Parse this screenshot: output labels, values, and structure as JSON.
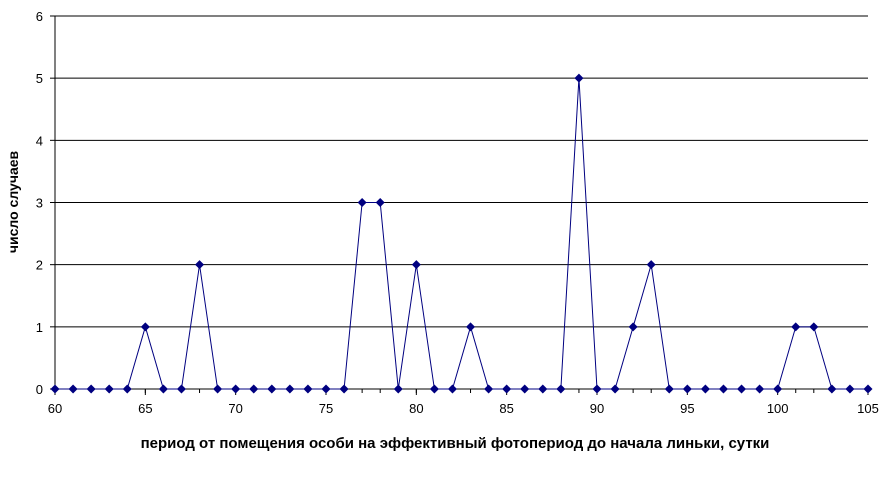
{
  "chart_data": {
    "type": "line",
    "xlabel": "период от помещения особи на эффективный фотопериод до начала линьки, сутки",
    "ylabel": "число случаев",
    "x": [
      60,
      61,
      62,
      63,
      64,
      65,
      66,
      67,
      68,
      69,
      70,
      71,
      72,
      73,
      74,
      75,
      76,
      77,
      78,
      79,
      80,
      81,
      82,
      83,
      84,
      85,
      86,
      87,
      88,
      89,
      90,
      91,
      92,
      93,
      94,
      95,
      96,
      97,
      98,
      99,
      100,
      101,
      102,
      103,
      104,
      105
    ],
    "values": [
      0,
      0,
      0,
      0,
      0,
      1,
      0,
      0,
      2,
      0,
      0,
      0,
      0,
      0,
      0,
      0,
      0,
      3,
      3,
      0,
      2,
      0,
      0,
      1,
      0,
      0,
      0,
      0,
      0,
      5,
      0,
      0,
      1,
      2,
      0,
      0,
      0,
      0,
      0,
      0,
      0,
      1,
      1,
      0,
      0,
      0
    ],
    "color": "#000080",
    "xlim": [
      60,
      105
    ],
    "xticks": [
      60,
      65,
      70,
      75,
      80,
      85,
      90,
      95,
      100,
      105
    ],
    "ylim": [
      0,
      6
    ],
    "yticks": [
      0,
      1,
      2,
      3,
      4,
      5,
      6
    ],
    "grid": true
  }
}
